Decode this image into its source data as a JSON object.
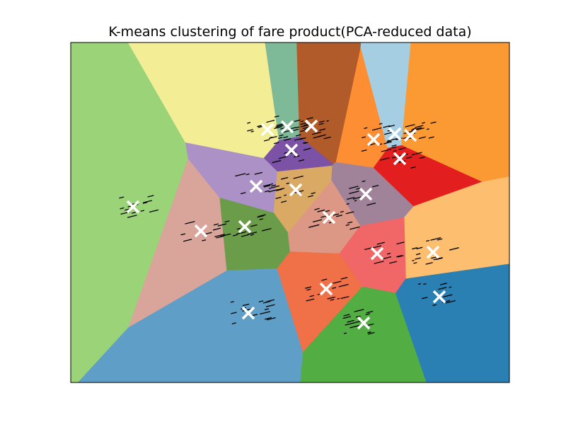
{
  "chart_data": {
    "type": "scatter",
    "title": "K-means clustering of fare product(PCA-reduced data)",
    "xlabel": "",
    "ylabel": "",
    "xlim": [
      0,
      620
    ],
    "ylim": [
      0,
      480
    ],
    "axes_visible": false,
    "grid": false,
    "legend": "none",
    "centroid_marker": {
      "shape": "x",
      "color": "#ffffff"
    },
    "point_color": "#000000",
    "clusters": [
      {
        "color": "#9ad378",
        "centroid": [
          88,
          232
        ]
      },
      {
        "color": "#f3ed96",
        "centroid": [
          278,
          123
        ]
      },
      {
        "color": "#7fba98",
        "centroid": [
          306,
          119
        ]
      },
      {
        "color": "#b15a2a",
        "centroid": [
          340,
          118
        ]
      },
      {
        "color": "#a6cee3",
        "centroid": [
          458,
          129
        ]
      },
      {
        "color": "#fb9a33",
        "centroid": [
          480,
          131
        ]
      },
      {
        "color": "#d9a59a",
        "centroid": [
          184,
          266
        ]
      },
      {
        "color": "#7b52a5",
        "centroid": [
          312,
          152
        ]
      },
      {
        "color": "#ab91c5",
        "centroid": [
          262,
          203
        ]
      },
      {
        "color": "#daa964",
        "centroid": [
          318,
          208
        ]
      },
      {
        "color": "#a08399",
        "centroid": [
          417,
          214
        ]
      },
      {
        "color": "#e31e1e",
        "centroid": [
          465,
          164
        ]
      },
      {
        "color": "#fd8e34",
        "centroid": [
          428,
          137
        ]
      },
      {
        "color": "#fdbf6f",
        "centroid": [
          512,
          296
        ]
      },
      {
        "color": "#6b9c4a",
        "centroid": [
          246,
          260
        ]
      },
      {
        "color": "#dd9885",
        "centroid": [
          365,
          247
        ]
      },
      {
        "color": "#f16666",
        "centroid": [
          433,
          298
        ]
      },
      {
        "color": "#5f9ec7",
        "centroid": [
          251,
          382
        ]
      },
      {
        "color": "#f07048",
        "centroid": [
          361,
          348
        ]
      },
      {
        "color": "#52ad43",
        "centroid": [
          414,
          396
        ]
      },
      {
        "color": "#2a7fb3",
        "centroid": [
          521,
          359
        ]
      }
    ]
  }
}
